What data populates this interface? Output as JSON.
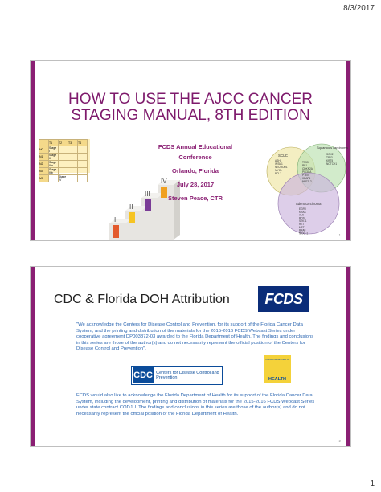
{
  "header": {
    "date": "8/3/2017"
  },
  "footer": {
    "page_number": "1"
  },
  "slide1": {
    "title": "HOW TO USE THE AJCC CANCER STAGING MANUAL, 8TH EDITION",
    "conference": "FCDS Annual Educational Conference",
    "location": "Orlando, Florida",
    "date": "July 28, 2017",
    "presenter": "Steven Peace, CTR",
    "grid": {
      "columns": [
        "T1",
        "T2",
        "T3",
        "T4"
      ],
      "rows": [
        {
          "label": "N0",
          "cells": [
            "Stage I",
            "",
            "",
            ""
          ]
        },
        {
          "label": "N1",
          "cells": [
            "Stage II",
            "",
            "",
            ""
          ]
        },
        {
          "label": "N2",
          "cells": [
            "Stage IIIa",
            "",
            "",
            ""
          ]
        },
        {
          "label": "N3",
          "cells": [
            "Stage IIIb",
            "",
            "",
            ""
          ]
        },
        {
          "label": "M1",
          "cells": [
            "",
            "Stage IV",
            "",
            ""
          ]
        }
      ]
    },
    "stairs_labels": [
      "I",
      "II",
      "III",
      "IV"
    ],
    "venn": {
      "circle1_title": "SCLC",
      "circle1_items": [
        "ASH1",
        "INSM1",
        "NEUROD1",
        "MYCL",
        "BCL2"
      ],
      "circle2_title": "Squamous carcinoma",
      "circle2_items": [
        "SOX2",
        "TP63",
        "KRT5",
        "NOTCH1"
      ],
      "circle3_title": "Adenocarcinoma",
      "circle3_items": [
        "EGFR",
        "KRAS",
        "ALK",
        "ROS1",
        "STK11",
        "RET",
        "MET",
        "BRAF",
        "NKX2-1"
      ],
      "overlap_items": [
        "TP53",
        "RB1",
        "CDKN2A",
        "PIK3CA",
        "PTEN",
        "KEAP1",
        "NFE2L2"
      ]
    },
    "page_num": "1"
  },
  "slide2": {
    "title": "CDC & Florida DOH Attribution",
    "logo_text": "FCDS",
    "para1": "\"We acknowledge the Centers for Disease Control and Prevention, for its support of the Florida Cancer Data System, and the printing and distribution of the materials for the 2015-2016 FCDS Webcast Series under cooperative agreement DP003872-03 awarded to the Florida Department of Health. The findings and conclusions in this series are those of the author(s) and do not necessarily represent the official position of the Centers for Disease Control and Prevention\".",
    "cdc_mark": "CDC",
    "cdc_text": "Centers for Disease Control and Prevention",
    "doh_top": "Florida Department of",
    "doh_text": "HEALTH",
    "para2": "FCDS would also like to acknowledge the Florida Department of Health for its support of the Florida Cancer Data System, including the development, printing and distribution of materials for the 2015-2016 FCDS Webcast Series under state contract CODJU. The findings and conclusions in this series are those of the author(s) and do not necessarily represent the official position of the Florida Department of Health.",
    "page_num": "2"
  },
  "colors": {
    "accent": "#8a1f73",
    "title": "#7e1a6c",
    "body_text": "#2a65b0",
    "fcds_blue": "#0b2d79"
  }
}
